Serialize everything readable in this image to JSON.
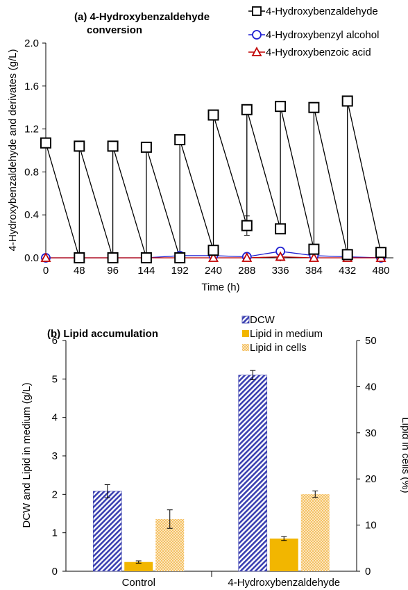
{
  "chart_data": [
    {
      "type": "line",
      "title_line1": "(a) 4-Hydroxybenzaldehyde",
      "title_line2": "conversion",
      "xlabel": "Time (h)",
      "ylabel": "4-Hydroxybenzaldehyde and derivates (g/L)",
      "xlim": [
        0,
        480
      ],
      "ylim": [
        0,
        2.0
      ],
      "xticks": [
        "0",
        "48",
        "96",
        "144",
        "192",
        "240",
        "288",
        "336",
        "384",
        "432",
        "480"
      ],
      "yticks": [
        "0.0",
        "0.4",
        "0.8",
        "1.2",
        "1.6",
        "2.0"
      ],
      "legend_position": "top-right",
      "series": [
        {
          "name": "4-Hydroxybenzaldehyde",
          "color": "#000000",
          "marker": "square",
          "x": [
            0,
            48,
            48,
            96,
            96,
            144,
            144,
            192,
            192,
            240,
            240,
            288,
            288,
            336,
            336,
            384,
            384,
            432,
            432,
            480
          ],
          "y": [
            1.07,
            0.0,
            1.04,
            0.0,
            1.04,
            0.0,
            1.03,
            0.0,
            1.1,
            0.07,
            1.33,
            0.3,
            1.38,
            0.27,
            1.41,
            0.08,
            1.4,
            0.03,
            1.46,
            0.05
          ],
          "err": [
            0,
            0,
            0,
            0,
            0,
            0,
            0,
            0,
            0,
            0,
            0,
            0.09,
            0,
            0,
            0,
            0,
            0,
            0,
            0,
            0
          ]
        },
        {
          "name": "4-Hydroxybenzyl alcohol",
          "color": "#1f1fd0",
          "marker": "circle",
          "x": [
            0,
            48,
            96,
            144,
            192,
            240,
            288,
            336,
            384,
            432,
            480
          ],
          "y": [
            0.0,
            0.0,
            0.0,
            0.0,
            0.02,
            0.02,
            0.01,
            0.06,
            0.02,
            0.01,
            0.0
          ]
        },
        {
          "name": "4-Hydroxybenzoic acid",
          "color": "#c00000",
          "marker": "triangle",
          "x": [
            0,
            48,
            96,
            144,
            192,
            240,
            288,
            336,
            384,
            432,
            480
          ],
          "y": [
            0.0,
            0.0,
            0.0,
            0.0,
            0.0,
            0.0,
            0.0,
            0.01,
            0.0,
            0.0,
            0.0
          ]
        }
      ]
    },
    {
      "type": "bar",
      "title": "(b) Lipid accumulation",
      "ylabel": "DCW and Lipid in medium (g/L)",
      "y2label": "Lipid in cells (%)",
      "categories": [
        "Control",
        "4-Hydroxybenzaldehyde"
      ],
      "ylim": [
        0,
        6
      ],
      "y2lim": [
        0,
        50
      ],
      "yticks": [
        "0",
        "1",
        "2",
        "3",
        "4",
        "5",
        "6"
      ],
      "y2ticks": [
        "0",
        "10",
        "20",
        "30",
        "40",
        "50"
      ],
      "legend_position": "top-center",
      "series": [
        {
          "name": "DCW",
          "axis": "left",
          "color": "#3a3fb0",
          "pattern": "diagonal-hatch",
          "values": [
            2.08,
            5.1
          ],
          "err": [
            0.17,
            0.12
          ]
        },
        {
          "name": "Lipid in medium",
          "axis": "left",
          "color": "#f2b600",
          "pattern": "solid",
          "values": [
            0.24,
            0.85
          ],
          "err": [
            0.03,
            0.05
          ]
        },
        {
          "name": "Lipid in cells",
          "axis": "right",
          "color": "#f5c163",
          "pattern": "dots",
          "values": [
            11.3,
            16.7
          ],
          "err": [
            2.0,
            0.7
          ]
        }
      ]
    }
  ]
}
